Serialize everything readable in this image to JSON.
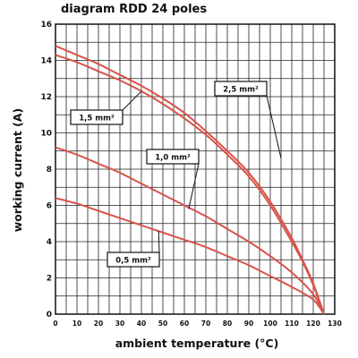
{
  "chart_data": {
    "type": "line",
    "title": "diagram RDD 24 poles",
    "xlabel": "ambient temperature (°C)",
    "ylabel": "working current (A)",
    "xlim": [
      0,
      130
    ],
    "ylim": [
      0,
      16
    ],
    "x_ticks": [
      0,
      10,
      20,
      30,
      40,
      50,
      60,
      70,
      80,
      90,
      100,
      110,
      120,
      130
    ],
    "y_ticks": [
      0,
      2,
      4,
      6,
      8,
      10,
      12,
      14,
      16
    ],
    "grid": true,
    "line_color": "#d9534a",
    "series": [
      {
        "name": "2,5 mm²",
        "x": [
          0,
          10,
          20,
          30,
          40,
          50,
          60,
          70,
          80,
          90,
          100,
          110,
          115,
          120,
          125
        ],
        "y": [
          14.8,
          14.3,
          13.8,
          13.2,
          12.6,
          11.9,
          11.1,
          10.1,
          9.0,
          7.8,
          6.2,
          4.2,
          3.0,
          1.7,
          0
        ]
      },
      {
        "name": "1,5 mm²",
        "x": [
          0,
          10,
          20,
          30,
          40,
          50,
          60,
          70,
          80,
          90,
          100,
          110,
          115,
          120,
          125
        ],
        "y": [
          14.3,
          13.9,
          13.4,
          12.9,
          12.3,
          11.6,
          10.8,
          9.9,
          8.8,
          7.6,
          6.0,
          4.0,
          2.9,
          1.6,
          0
        ]
      },
      {
        "name": "1,0 mm²",
        "x": [
          0,
          10,
          20,
          30,
          40,
          50,
          60,
          70,
          80,
          90,
          100,
          110,
          120,
          125
        ],
        "y": [
          9.2,
          8.8,
          8.3,
          7.8,
          7.2,
          6.6,
          6.0,
          5.4,
          4.7,
          4.0,
          3.2,
          2.3,
          1.1,
          0
        ]
      },
      {
        "name": "0,5 mm²",
        "x": [
          0,
          10,
          20,
          30,
          40,
          50,
          60,
          70,
          80,
          90,
          100,
          110,
          120,
          125
        ],
        "y": [
          6.4,
          6.1,
          5.7,
          5.3,
          4.9,
          4.5,
          4.1,
          3.7,
          3.2,
          2.7,
          2.1,
          1.5,
          0.8,
          0
        ]
      }
    ],
    "annotations": [
      {
        "text": "2,5 mm²",
        "series": "2,5 mm²"
      },
      {
        "text": "1,5 mm²",
        "series": "1,5 mm²"
      },
      {
        "text": "1,0 mm²",
        "series": "1,0 mm²"
      },
      {
        "text": "0,5 mm²",
        "series": "0,5 mm²"
      }
    ]
  }
}
